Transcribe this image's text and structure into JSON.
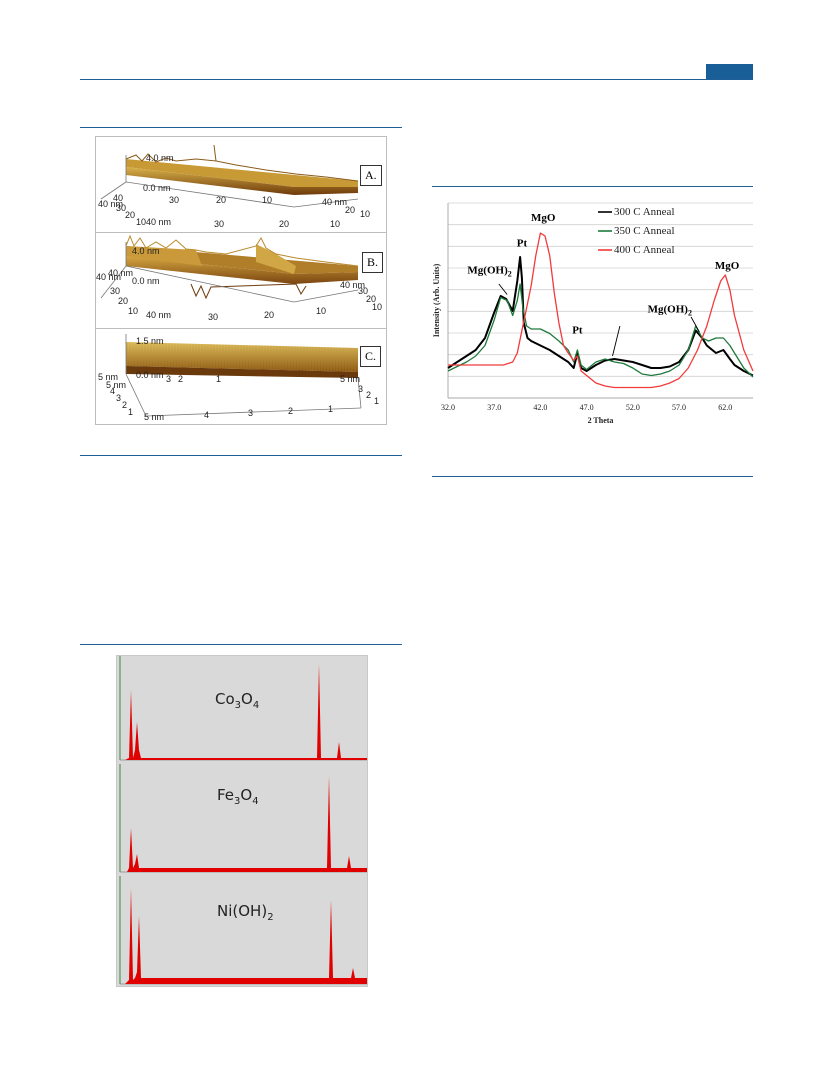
{
  "afm_figure": {
    "panels": [
      {
        "tag": "A.",
        "height_label": "4.0 nm",
        "zero_label": "0.0 nm",
        "left_axis": [
          "40 nm",
          "40",
          "30",
          "20",
          "10"
        ],
        "bottom_axis": [
          "40 nm",
          "30",
          "20",
          "10"
        ],
        "right_axis": [
          "40 nm",
          "20",
          "10"
        ],
        "extra_bottom": [
          "30",
          "20",
          "10"
        ]
      },
      {
        "tag": "B.",
        "height_label": "4.0 nm",
        "zero_label": "0.0 nm",
        "left_axis": [
          "40 nm",
          "40 nm",
          "30",
          "20",
          "10"
        ],
        "bottom_axis": [
          "40 nm",
          "30",
          "20",
          "10"
        ],
        "right_axis": [
          "40 nm",
          "30",
          "20",
          "10"
        ]
      },
      {
        "tag": "C.",
        "height_label": "1.5 nm",
        "zero_label": "0.0 nm",
        "left_axis": [
          "5 nm",
          "5 nm",
          "4",
          "3",
          "2",
          "1"
        ],
        "bottom_axis": [
          "5 nm",
          "4",
          "3",
          "2",
          "1"
        ],
        "right_axis": [
          "5 nm",
          "3",
          "2",
          "1"
        ],
        "mid_axis": [
          "3",
          "2",
          "1"
        ]
      }
    ]
  },
  "eds_figure": {
    "panels": [
      {
        "label_main": "Co",
        "label_sub1": "3",
        "label_mid": "O",
        "label_sub2": "4"
      },
      {
        "label_main": "Fe",
        "label_sub1": "3",
        "label_mid": "O",
        "label_sub2": "4"
      },
      {
        "label_main": "Ni(OH)",
        "label_sub1": "",
        "label_mid": "",
        "label_sub2": "2"
      }
    ],
    "peak_color": "#e00000",
    "background_color": "#d9d9d9"
  },
  "chart_data": {
    "type": "line",
    "ylabel": "Intensity (Arb. Units)",
    "xlabel": "2 Theta",
    "xlim": [
      32.0,
      65.0
    ],
    "x_ticks": [
      "32.0",
      "37.0",
      "42.0",
      "47.0",
      "52.0",
      "57.0",
      "62.0"
    ],
    "x_tick_values": [
      32,
      37,
      42,
      47,
      52,
      57,
      62
    ],
    "grid": true,
    "legend_position": "top-right",
    "series": [
      {
        "name": "300 C Anneal",
        "color": "#000000",
        "x": [
          32,
          33,
          34,
          35,
          36,
          37,
          37.7,
          38.3,
          39,
          39.5,
          39.8,
          40.0,
          40.2,
          40.6,
          41,
          42,
          43,
          44,
          45,
          45.6,
          46.0,
          46.4,
          47,
          48,
          49,
          50,
          51,
          52,
          53,
          54,
          55,
          56,
          57,
          58,
          58.8,
          59.5,
          60,
          61,
          61.8,
          62.5,
          63,
          64,
          65
        ],
        "y": [
          10,
          14,
          18,
          22,
          30,
          47,
          58,
          56,
          48,
          68,
          84,
          70,
          40,
          30,
          28,
          25,
          22,
          18,
          14,
          10,
          20,
          10,
          8,
          12,
          15,
          16,
          15,
          14,
          12,
          10,
          10,
          11,
          14,
          22,
          35,
          30,
          25,
          20,
          22,
          16,
          12,
          8,
          5
        ]
      },
      {
        "name": "350 C Anneal",
        "color": "#1e7a3c",
        "x": [
          32,
          33,
          34,
          35,
          36,
          37,
          37.7,
          38.4,
          39,
          39.5,
          39.8,
          40.1,
          40.5,
          41,
          42,
          43,
          44,
          45,
          45.6,
          46.0,
          46.4,
          47,
          48,
          49,
          50,
          51,
          52,
          53,
          54,
          55,
          56,
          57,
          58,
          58.8,
          59.5,
          60.2,
          61,
          61.8,
          62.5,
          63,
          64,
          65
        ],
        "y": [
          8,
          11,
          14,
          18,
          25,
          42,
          57,
          55,
          45,
          55,
          66,
          50,
          38,
          36,
          36,
          33,
          28,
          22,
          14,
          22,
          12,
          9,
          14,
          16,
          14,
          13,
          10,
          6,
          5,
          6,
          8,
          12,
          22,
          38,
          30,
          28,
          30,
          30,
          25,
          20,
          10,
          4
        ]
      },
      {
        "name": "400 C Anneal",
        "color": "#f23b3b",
        "x": [
          32,
          33,
          34,
          35,
          36,
          37,
          38,
          39,
          39.5,
          40,
          40.5,
          41,
          41.5,
          42,
          42.5,
          43,
          43.5,
          44,
          44.5,
          45,
          45.6,
          46.0,
          46.4,
          47,
          48,
          49,
          50,
          51,
          52,
          53,
          54,
          55,
          56,
          57,
          58,
          59,
          60,
          60.8,
          61.5,
          62,
          62.5,
          63,
          64,
          65
        ],
        "y": [
          12,
          12,
          12,
          12,
          12,
          12,
          12,
          14,
          20,
          35,
          50,
          65,
          85,
          100,
          98,
          85,
          60,
          40,
          25,
          20,
          15,
          18,
          8,
          5,
          0,
          -2,
          -3,
          -3,
          -3,
          -3,
          -3,
          -2,
          0,
          3,
          10,
          22,
          38,
          55,
          68,
          72,
          62,
          45,
          22,
          8
        ]
      }
    ],
    "annotations": [
      {
        "text": "MgO",
        "x": 42.3,
        "y_data": 108
      },
      {
        "text": "Pt",
        "x": 40.0,
        "y_data": 91
      },
      {
        "text": "Mg(OH)2",
        "x": 36.5,
        "y_data": 73
      },
      {
        "text": "Pt",
        "x": 46.0,
        "y_data": 33
      },
      {
        "text": "Mg(OH)2",
        "x": 56.0,
        "y_data": 47
      },
      {
        "text": "MgO",
        "x": 62.2,
        "y_data": 76
      }
    ],
    "ylim": [
      -10,
      120
    ]
  }
}
